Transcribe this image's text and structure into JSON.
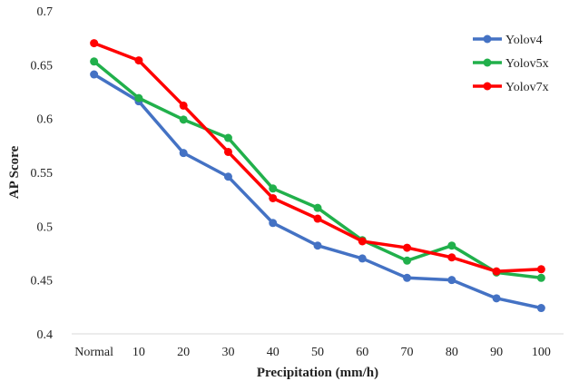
{
  "chart_data": {
    "type": "line",
    "title": "",
    "xlabel": "Precipitation (mm/h)",
    "ylabel": "AP Score",
    "categories": [
      "Normal",
      "10",
      "20",
      "30",
      "40",
      "50",
      "60",
      "70",
      "80",
      "90",
      "100"
    ],
    "ylim": [
      0.4,
      0.7
    ],
    "yticks": [
      "0.4",
      "0.45",
      "0.5",
      "0.55",
      "0.6",
      "0.65",
      "0.7"
    ],
    "grid": false,
    "legend_position": "top-right",
    "series": [
      {
        "name": "Yolov4",
        "color": "#4472C4",
        "values": [
          0.641,
          0.616,
          0.568,
          0.546,
          0.503,
          0.482,
          0.47,
          0.452,
          0.45,
          0.433,
          0.424
        ]
      },
      {
        "name": "Yolov5x",
        "color": "#21B04B",
        "values": [
          0.653,
          0.619,
          0.599,
          0.582,
          0.535,
          0.517,
          0.487,
          0.468,
          0.482,
          0.457,
          0.452
        ]
      },
      {
        "name": "Yolov7x",
        "color": "#FF0000",
        "values": [
          0.67,
          0.654,
          0.612,
          0.569,
          0.526,
          0.507,
          0.486,
          0.48,
          0.471,
          0.458,
          0.46
        ]
      }
    ]
  }
}
